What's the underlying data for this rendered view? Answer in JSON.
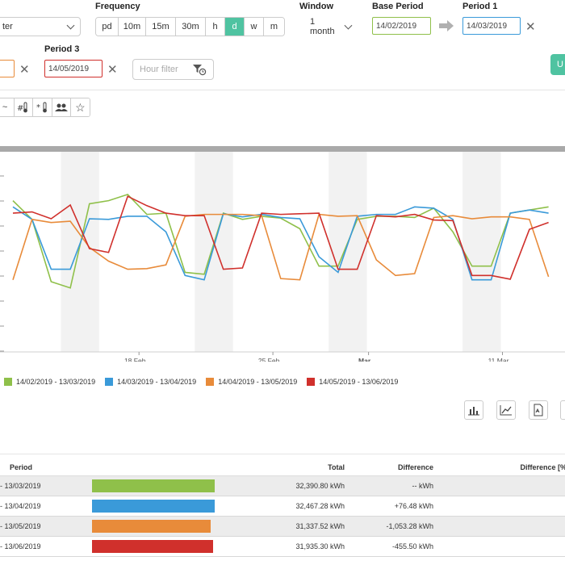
{
  "meter": {
    "value": "ter"
  },
  "frequency": {
    "label": "Frequency",
    "options": [
      "pd",
      "10m",
      "15m",
      "30m",
      "h",
      "d",
      "w",
      "m"
    ],
    "active": "d"
  },
  "window": {
    "label": "Window",
    "value": "1 month"
  },
  "base_period": {
    "label": "Base Period",
    "value": "14/02/2019",
    "color": "#8fc04a"
  },
  "period1": {
    "label": "Period 1",
    "value": "14/03/2019",
    "color": "#3a9ad9"
  },
  "period3": {
    "label": "Period 3",
    "value": "14/05/2019",
    "color": "#d0302c"
  },
  "period2": {
    "color": "#e88b3a"
  },
  "hour_filter": {
    "placeholder": "Hour filter"
  },
  "update_button": {
    "label": "U"
  },
  "toolbar": {
    "icons": [
      "sparkline-icon",
      "temperature-hash-icon",
      "temperature-star-icon",
      "users-icon",
      "star-icon"
    ]
  },
  "chart_data": {
    "type": "line",
    "xticks": [
      {
        "index": 4,
        "label": "18 Feb"
      },
      {
        "index": 11,
        "label": "25 Feb"
      },
      {
        "index": 16,
        "label": "Mar",
        "bold": true
      },
      {
        "index": 23,
        "label": "11 Mar"
      }
    ],
    "series": [
      {
        "name": "14/02/2019 - 13/03/2019",
        "color": "#8fc04a",
        "values": [
          1090,
          1060,
          960,
          950,
          1085,
          1090,
          1100,
          1068,
          1070,
          975,
          972,
          1070,
          1060,
          1065,
          1062,
          1045,
          985,
          985,
          1060,
          1065,
          1065,
          1063,
          1078,
          1040,
          985,
          985,
          1070,
          1075,
          1080
        ]
      },
      {
        "name": "14/03/2019 - 13/04/2019",
        "color": "#3a9ad9",
        "values": [
          1080,
          1060,
          980,
          980,
          1061,
          1060,
          1065,
          1065,
          1040,
          970,
          963,
          1069,
          1064,
          1068,
          1063,
          1061,
          1000,
          975,
          1065,
          1068,
          1068,
          1080,
          1078,
          1060,
          963,
          963,
          1070,
          1075,
          1070
        ]
      },
      {
        "name": "14/04/2019 - 13/05/2019",
        "color": "#e88b3a",
        "values": [
          963,
          1060,
          1055,
          1057,
          1015,
          993,
          980,
          981,
          987,
          1065,
          1068,
          1068,
          1068,
          1066,
          965,
          963,
          1068,
          1065,
          1066,
          995,
          970,
          973,
          1063,
          1066,
          1061,
          1064,
          1064,
          1060,
          968
        ]
      },
      {
        "name": "14/05/2019 - 13/06/2019",
        "color": "#d0302c",
        "values": [
          1070,
          1072,
          1061,
          1083,
          1013,
          1007,
          1097,
          1082,
          1070,
          1066,
          1066,
          980,
          982,
          1070,
          1068,
          1069,
          1070,
          980,
          980,
          1066,
          1064,
          1068,
          1059,
          1058,
          970,
          970,
          964,
          1044,
          1055
        ]
      }
    ]
  },
  "summary": {
    "headers": {
      "period": "Period",
      "total": "Total",
      "difference": "Difference",
      "difference_pct": "Difference [%"
    },
    "rows": [
      {
        "period": "- 13/03/2019",
        "total": "32,390.80 kWh",
        "difference": "-- kWh",
        "color": "#8fc04a",
        "fraction": 0.998
      },
      {
        "period": "- 13/04/2019",
        "total": "32,467.28 kWh",
        "difference": "+76.48 kWh",
        "color": "#3a9ad9",
        "fraction": 1.0
      },
      {
        "period": "- 13/05/2019",
        "total": "31,337.52 kWh",
        "difference": "-1,053.28 kWh",
        "color": "#e88b3a",
        "fraction": 0.965
      },
      {
        "period": "- 13/06/2019",
        "total": "31,935.30 kWh",
        "difference": "-455.50 kWh",
        "color": "#d0302c",
        "fraction": 0.984
      }
    ]
  }
}
